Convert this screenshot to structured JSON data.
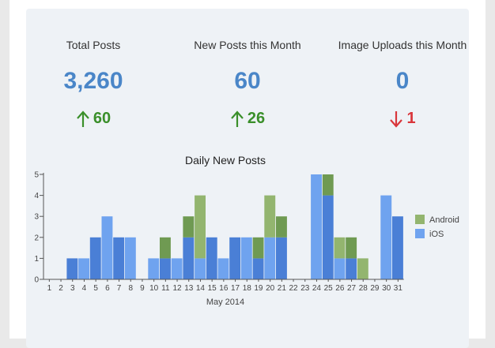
{
  "stats": [
    {
      "label": "Total Posts",
      "value": "3,260",
      "change": "60",
      "direction": "up"
    },
    {
      "label": "New Posts this Month",
      "value": "60",
      "change": "26",
      "direction": "up"
    },
    {
      "label": "Image Uploads this Month",
      "value": "0",
      "change": "1",
      "direction": "down"
    }
  ],
  "colors": {
    "up": "#3a8f2a",
    "down": "#d9363b",
    "value": "#4a86c8"
  },
  "icons": {
    "up": "arrow-up-icon",
    "down": "arrow-down-icon"
  },
  "chart_data": {
    "type": "bar",
    "stacked": true,
    "title": "Daily New Posts",
    "xlabel": "May 2014",
    "ylabel": "",
    "ylim": [
      0,
      5
    ],
    "yticks": [
      0,
      1,
      2,
      3,
      4,
      5
    ],
    "categories": [
      "1",
      "2",
      "3",
      "4",
      "5",
      "6",
      "7",
      "8",
      "9",
      "10",
      "11",
      "12",
      "13",
      "14",
      "15",
      "16",
      "17",
      "18",
      "19",
      "20",
      "21",
      "22",
      "23",
      "24",
      "25",
      "26",
      "27",
      "28",
      "29",
      "30",
      "31"
    ],
    "series": [
      {
        "name": "iOS",
        "color": "#6fa3ef",
        "values": [
          0,
          0,
          1,
          1,
          2,
          3,
          2,
          2,
          0,
          1,
          1,
          1,
          2,
          1,
          2,
          1,
          2,
          2,
          1,
          2,
          2,
          0,
          0,
          5,
          4,
          1,
          1,
          0,
          0,
          4,
          3
        ]
      },
      {
        "name": "Android",
        "color": "#93b56f",
        "values": [
          0,
          0,
          0,
          0,
          0,
          0,
          0,
          0,
          0,
          0,
          1,
          0,
          1,
          3,
          0,
          0,
          0,
          0,
          1,
          2,
          1,
          0,
          0,
          0,
          1,
          1,
          1,
          1,
          0,
          0,
          0
        ]
      }
    ],
    "legend": "right",
    "grid": false
  }
}
